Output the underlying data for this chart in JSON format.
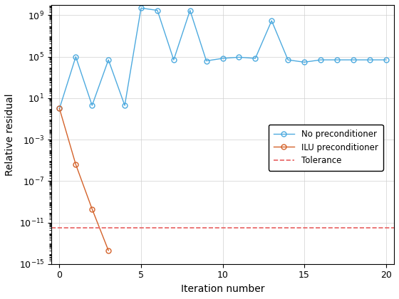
{
  "title": "",
  "xlabel": "Iteration number",
  "ylabel": "Relative residual",
  "xlim": [
    -0.5,
    20.5
  ],
  "ylim_log_min": -15,
  "ylim_log_max": 10,
  "blue_x": [
    0,
    1,
    2,
    3,
    4,
    5,
    6,
    7,
    8,
    9,
    10,
    11,
    12,
    13,
    14,
    15,
    16,
    17,
    18,
    19,
    20
  ],
  "blue_y": [
    1.0,
    100000.0,
    2.0,
    50000.0,
    2.0,
    5000000000.0,
    3000000000.0,
    50000.0,
    3000000000.0,
    40000.0,
    70000.0,
    90000.0,
    70000.0,
    300000000.0,
    50000.0,
    30000.0,
    50000.0,
    50000.0,
    50000.0,
    50000.0,
    50000.0
  ],
  "orange_x": [
    0,
    1,
    2,
    3
  ],
  "orange_y": [
    1.0,
    4e-06,
    2e-10,
    2e-14
  ],
  "tolerance": 3e-12,
  "blue_color": "#4daadf",
  "orange_color": "#d4622a",
  "tolerance_color": "#e86060",
  "legend_labels": [
    "No preconditioner",
    "ILU preconditioner",
    "Tolerance"
  ],
  "xticks": [
    0,
    5,
    10,
    15,
    20
  ],
  "yticks_log": [
    -15,
    -10,
    -5,
    0,
    5,
    10
  ],
  "background_color": "#ffffff",
  "figsize": [
    5.6,
    4.2
  ],
  "dpi": 100
}
